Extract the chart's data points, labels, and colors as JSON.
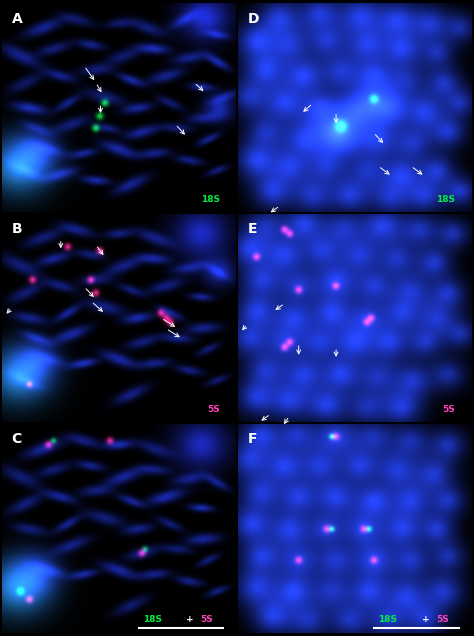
{
  "figure_width": 4.74,
  "figure_height": 6.36,
  "dpi": 100,
  "background_color": "#000000",
  "panel_label_color": "#ffffff",
  "panel_label_fontsize": 10,
  "label_texts": {
    "A": {
      "text": "18S",
      "color": "#00ee44"
    },
    "B": {
      "text": "5S",
      "color": "#ff44bb"
    },
    "C": {
      "parts": [
        [
          "18S",
          "#00ee44"
        ],
        [
          "+",
          "#ffffff"
        ],
        [
          "5S",
          "#ff44bb"
        ]
      ]
    },
    "D": {
      "text": "18S",
      "color": "#00ee44"
    },
    "E": {
      "text": "5S",
      "color": "#ff44bb"
    },
    "F": {
      "parts": [
        [
          "18S",
          "#00ee44"
        ],
        [
          "+",
          "#ffffff"
        ],
        [
          "5S",
          "#ff44bb"
        ]
      ]
    }
  },
  "panel_order": [
    [
      "A",
      0,
      0
    ],
    [
      "D",
      0,
      1
    ],
    [
      "B",
      1,
      0
    ],
    [
      "E",
      1,
      1
    ],
    [
      "C",
      2,
      0
    ],
    [
      "F",
      2,
      1
    ]
  ]
}
